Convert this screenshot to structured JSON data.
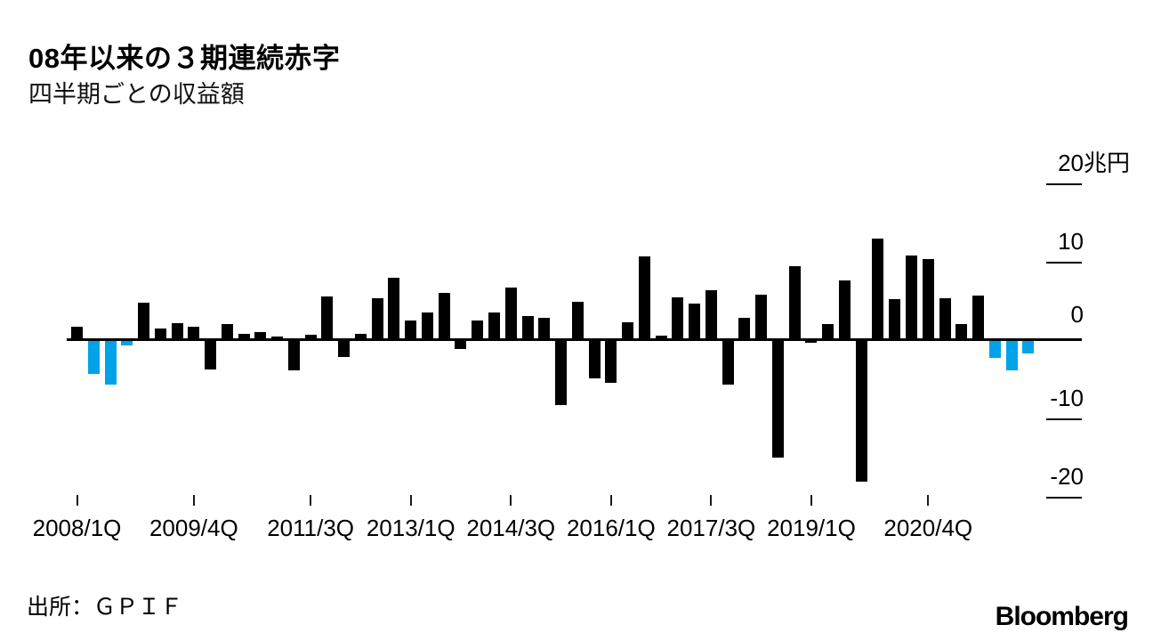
{
  "header": {
    "title": "08年以来の３期連続赤字",
    "subtitle": "四半期ごとの収益額"
  },
  "footer": {
    "source": "出所：ＧＰＩＦ",
    "brand": "Bloomberg"
  },
  "chart_data": {
    "type": "bar",
    "title": "08年以来の３期連続赤字",
    "subtitle": "四半期ごとの収益額",
    "unit": "兆円",
    "categories": [
      "2008/1Q",
      "2008/2Q",
      "2008/3Q",
      "2008/4Q",
      "2009/1Q",
      "2009/2Q",
      "2009/3Q",
      "2009/4Q",
      "2010/1Q",
      "2010/2Q",
      "2010/3Q",
      "2010/4Q",
      "2011/1Q",
      "2011/2Q",
      "2011/3Q",
      "2011/4Q",
      "2012/1Q",
      "2012/2Q",
      "2012/3Q",
      "2012/4Q",
      "2013/1Q",
      "2013/2Q",
      "2013/3Q",
      "2013/4Q",
      "2014/1Q",
      "2014/2Q",
      "2014/3Q",
      "2014/4Q",
      "2015/1Q",
      "2015/2Q",
      "2015/3Q",
      "2015/4Q",
      "2016/1Q",
      "2016/2Q",
      "2016/3Q",
      "2016/4Q",
      "2017/1Q",
      "2017/2Q",
      "2017/3Q",
      "2017/4Q",
      "2018/1Q",
      "2018/2Q",
      "2018/3Q",
      "2018/4Q",
      "2019/1Q",
      "2019/2Q",
      "2019/3Q",
      "2019/4Q",
      "2020/1Q",
      "2020/2Q",
      "2020/3Q",
      "2020/4Q",
      "2021/1Q",
      "2021/2Q",
      "2021/3Q",
      "2021/4Q",
      "2022/1Q",
      "2022/2Q"
    ],
    "values": [
      1.6,
      -4.2,
      -5.6,
      -0.6,
      4.7,
      1.4,
      2.1,
      1.6,
      -3.6,
      1.9,
      0.7,
      0.9,
      0.3,
      -3.8,
      0.6,
      5.5,
      -2.1,
      0.7,
      5.2,
      7.8,
      2.4,
      3.4,
      5.9,
      -1.0,
      2.4,
      3.4,
      6.6,
      2.9,
      2.7,
      -8.2,
      4.8,
      -4.8,
      -5.3,
      2.2,
      10.6,
      0.4,
      5.3,
      4.5,
      6.2,
      -5.6,
      2.7,
      5.7,
      -14.9,
      9.3,
      -0.2,
      1.9,
      7.5,
      -18.0,
      12.8,
      5.1,
      10.7,
      10.2,
      5.2,
      1.9,
      5.6,
      -2.2,
      -3.7,
      -1.6
    ],
    "highlight_indices": [
      1,
      2,
      3,
      55,
      56,
      57
    ],
    "colors": {
      "default": "#000000",
      "highlight": "#00a3e8"
    },
    "y_ticks": [
      {
        "value": 20,
        "label": "20",
        "suffix": "兆円"
      },
      {
        "value": 10,
        "label": "10",
        "suffix": ""
      },
      {
        "value": 0,
        "label": "0",
        "suffix": ""
      },
      {
        "value": -10,
        "label": "-10",
        "suffix": ""
      },
      {
        "value": -20,
        "label": "-20",
        "suffix": ""
      }
    ],
    "x_ticks": [
      {
        "index": 0,
        "label": "2008/1Q"
      },
      {
        "index": 7,
        "label": "2009/4Q"
      },
      {
        "index": 14,
        "label": "2011/3Q"
      },
      {
        "index": 20,
        "label": "2013/1Q"
      },
      {
        "index": 26,
        "label": "2014/3Q"
      },
      {
        "index": 32,
        "label": "2016/1Q"
      },
      {
        "index": 38,
        "label": "2017/3Q"
      },
      {
        "index": 44,
        "label": "2019/1Q"
      },
      {
        "index": 51,
        "label": "2020/4Q"
      }
    ],
    "ylim": [
      -22,
      21
    ],
    "grid": false,
    "legend": false
  }
}
